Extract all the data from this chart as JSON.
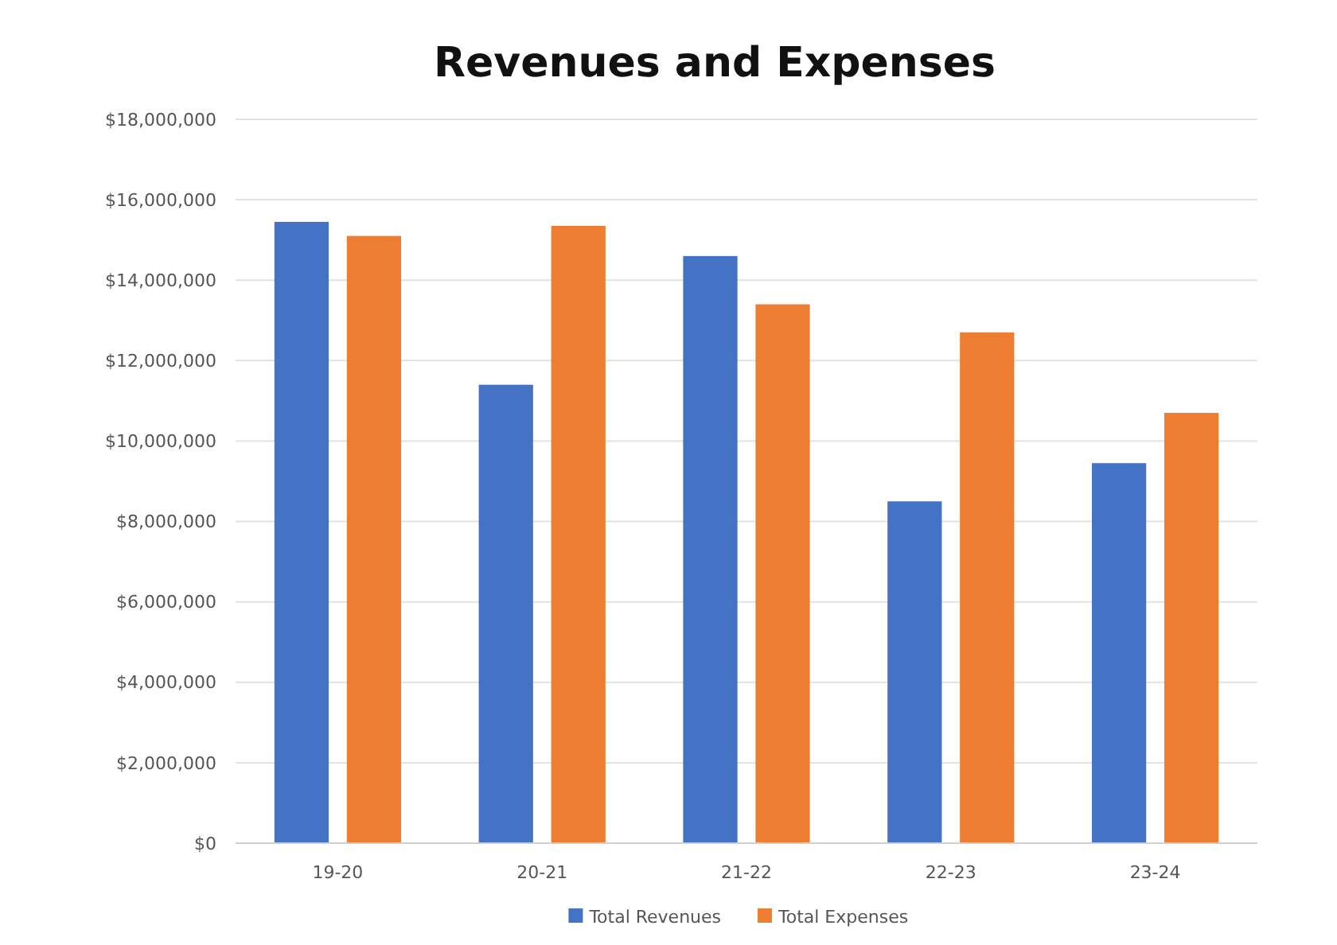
{
  "chart_data": {
    "type": "bar",
    "title": "Revenues and Expenses",
    "categories": [
      "19-20",
      "20-21",
      "21-22",
      "22-23",
      "23-24"
    ],
    "series": [
      {
        "name": "Total Revenues",
        "color": "#4472c4",
        "values": [
          15450000,
          11400000,
          14600000,
          8500000,
          9450000
        ]
      },
      {
        "name": "Total Expenses",
        "color": "#ed7d31",
        "values": [
          15100000,
          15350000,
          13400000,
          12700000,
          10700000
        ]
      }
    ],
    "ylim": [
      0,
      18000000
    ],
    "yticks": [
      {
        "value": 0,
        "label": "$0"
      },
      {
        "value": 2000000,
        "label": "$2,000,000"
      },
      {
        "value": 4000000,
        "label": "$4,000,000"
      },
      {
        "value": 6000000,
        "label": "$6,000,000"
      },
      {
        "value": 8000000,
        "label": "$8,000,000"
      },
      {
        "value": 10000000,
        "label": "$10,000,000"
      },
      {
        "value": 12000000,
        "label": "$12,000,000"
      },
      {
        "value": 14000000,
        "label": "$14,000,000"
      },
      {
        "value": 16000000,
        "label": "$16,000,000"
      },
      {
        "value": 18000000,
        "label": "$18,000,000"
      }
    ],
    "grid": "y",
    "legend": "bottom"
  }
}
